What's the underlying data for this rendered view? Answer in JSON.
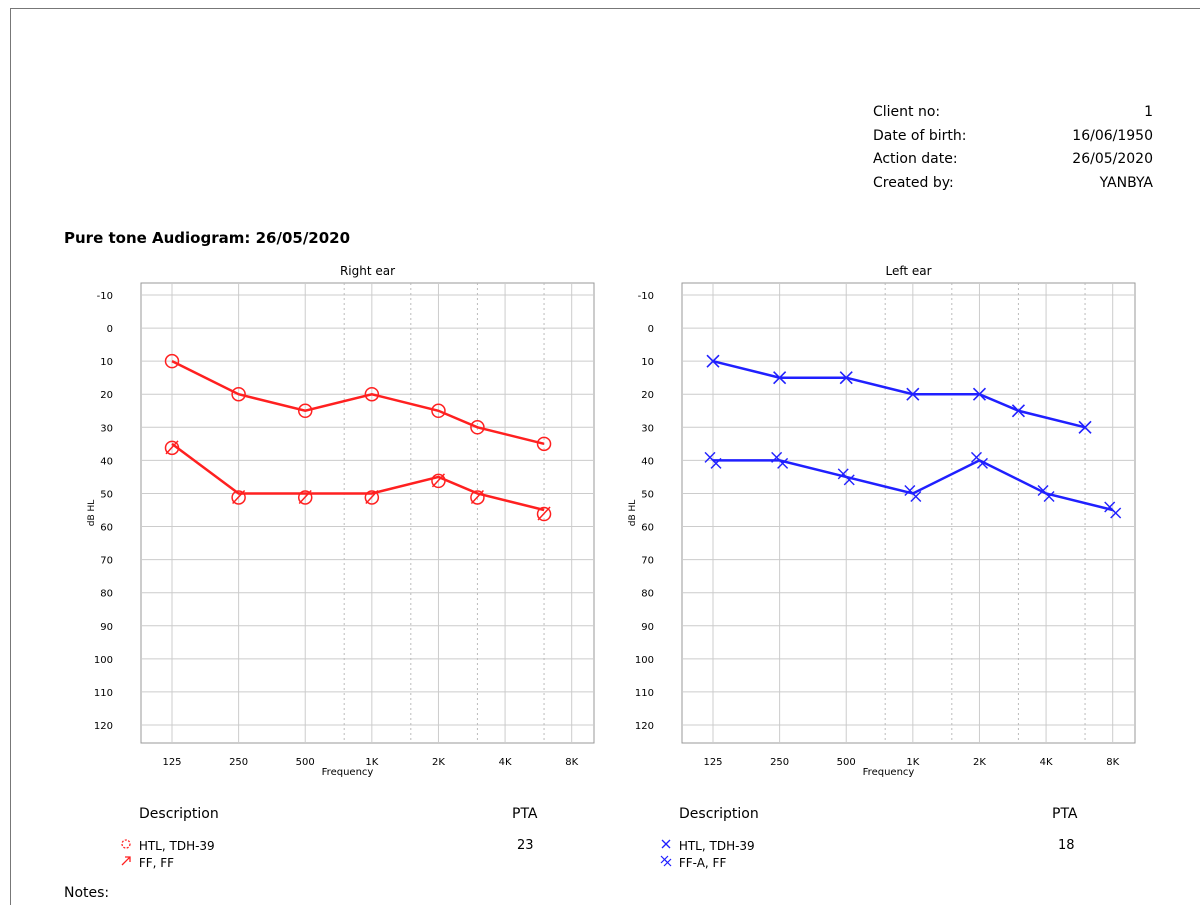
{
  "client_info": [
    {
      "label": "Client no:",
      "value": "1"
    },
    {
      "label": "Date of birth:",
      "value": "16/06/1950"
    },
    {
      "label": "Action date:",
      "value": "26/05/2020"
    },
    {
      "label": "Created by:",
      "value": "YANBYA"
    }
  ],
  "audiogram_title": "Pure tone Audiogram:  26/05/2020",
  "chart_data": [
    {
      "type": "line",
      "title": "Right ear",
      "xlabel": "Frequency",
      "ylabel": "dB HL",
      "x_ticks": [
        "125",
        "250",
        "500",
        "1K",
        "2K",
        "4K",
        "8K"
      ],
      "y_ticks": [
        -10,
        0,
        10,
        20,
        30,
        40,
        50,
        60,
        70,
        80,
        90,
        100,
        110,
        120
      ],
      "ylim": [
        -10,
        120
      ],
      "y_inverted": true,
      "grid": true,
      "color": "#ff2020",
      "series": [
        {
          "name": "HTL, TDH-39",
          "marker": "circle",
          "points": [
            [
              125,
              10
            ],
            [
              250,
              20
            ],
            [
              500,
              25
            ],
            [
              1000,
              20
            ],
            [
              2000,
              25
            ],
            [
              3000,
              30
            ],
            [
              6000,
              35
            ]
          ]
        },
        {
          "name": "FF, FF",
          "marker": "circle-arrow",
          "points": [
            [
              125,
              35
            ],
            [
              250,
              50
            ],
            [
              500,
              50
            ],
            [
              1000,
              50
            ],
            [
              2000,
              45
            ],
            [
              3000,
              50
            ],
            [
              6000,
              55
            ]
          ]
        }
      ]
    },
    {
      "type": "line",
      "title": "Left ear",
      "xlabel": "Frequency",
      "ylabel": "dB HL",
      "x_ticks": [
        "125",
        "250",
        "500",
        "1K",
        "2K",
        "4K",
        "8K"
      ],
      "y_ticks": [
        -10,
        0,
        10,
        20,
        30,
        40,
        50,
        60,
        70,
        80,
        90,
        100,
        110,
        120
      ],
      "ylim": [
        -10,
        120
      ],
      "y_inverted": true,
      "grid": true,
      "color": "#2020ff",
      "series": [
        {
          "name": "HTL, TDH-39",
          "marker": "x",
          "points": [
            [
              125,
              10
            ],
            [
              250,
              15
            ],
            [
              500,
              15
            ],
            [
              1000,
              20
            ],
            [
              2000,
              20
            ],
            [
              3000,
              25
            ],
            [
              6000,
              30
            ]
          ]
        },
        {
          "name": "FF-A, FF",
          "marker": "double-x",
          "points": [
            [
              125,
              40
            ],
            [
              250,
              40
            ],
            [
              500,
              45
            ],
            [
              1000,
              50
            ],
            [
              2000,
              40
            ],
            [
              4000,
              50
            ],
            [
              8000,
              55
            ]
          ]
        }
      ]
    }
  ],
  "legend_right": {
    "description_label": "Description",
    "pta_label": "PTA",
    "pta_value": "23",
    "items": [
      {
        "icon": "circle-marker-icon",
        "label": "HTL, TDH-39"
      },
      {
        "icon": "arrow-marker-icon",
        "label": "FF, FF"
      }
    ]
  },
  "legend_left": {
    "description_label": "Description",
    "pta_label": "PTA",
    "pta_value": "18",
    "items": [
      {
        "icon": "x-marker-icon",
        "label": "HTL, TDH-39"
      },
      {
        "icon": "double-x-marker-icon",
        "label": "FF-A, FF"
      }
    ]
  },
  "notes_label": "Notes:"
}
